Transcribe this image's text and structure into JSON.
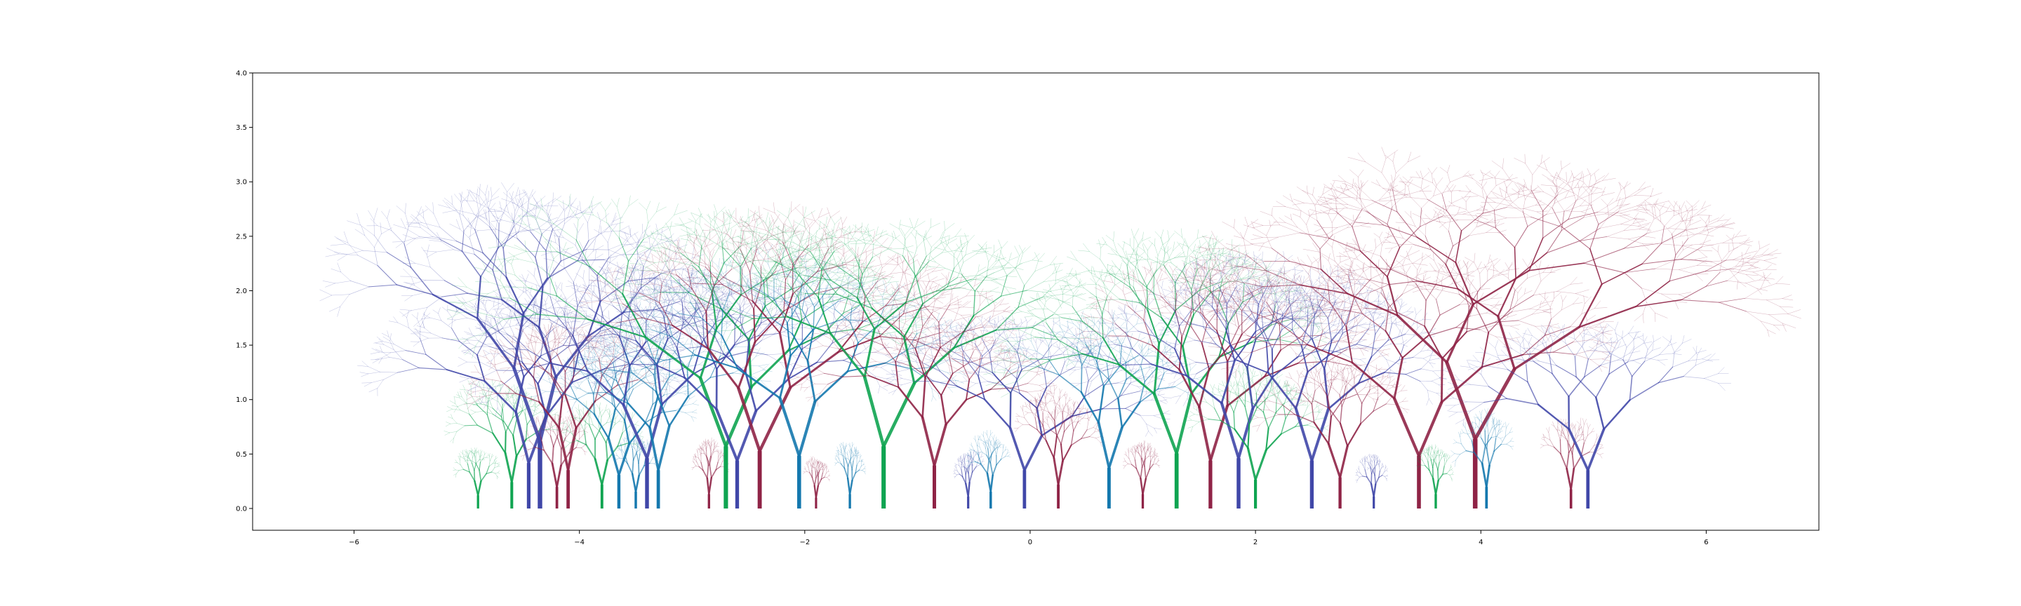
{
  "chart_data": {
    "type": "scatter",
    "title": "",
    "xlabel": "",
    "ylabel": "",
    "xlim": [
      -6.9,
      7.0
    ],
    "ylim": [
      -0.2,
      4.0
    ],
    "grid": false,
    "x_ticks": [
      -6,
      -4,
      -2,
      0,
      2,
      4,
      6
    ],
    "x_tick_labels": [
      "−6",
      "−4",
      "−2",
      "0",
      "2",
      "4",
      "6"
    ],
    "y_ticks": [
      0.0,
      0.5,
      1.0,
      1.5,
      2.0,
      2.5,
      3.0,
      3.5,
      4.0
    ],
    "y_tick_labels": [
      "0.0",
      "0.5",
      "1.0",
      "1.5",
      "2.0",
      "2.5",
      "3.0",
      "3.5",
      "4.0"
    ],
    "palette": [
      "#4047a8",
      "#8f2346",
      "#0fa451",
      "#1478ae"
    ],
    "trees": [
      {
        "x": -4.9,
        "h": 0.55,
        "spread": 0.7,
        "color": 2,
        "depth": 6
      },
      {
        "x": -4.6,
        "h": 1.1,
        "spread": 0.9,
        "color": 2,
        "depth": 7
      },
      {
        "x": -4.45,
        "h": 1.9,
        "spread": 1.3,
        "color": 0,
        "depth": 8
      },
      {
        "x": -4.35,
        "h": 2.8,
        "spread": 1.2,
        "color": 0,
        "depth": 8
      },
      {
        "x": -4.2,
        "h": 0.9,
        "spread": 0.6,
        "color": 1,
        "depth": 6
      },
      {
        "x": -4.1,
        "h": 1.6,
        "spread": 1.0,
        "color": 1,
        "depth": 7
      },
      {
        "x": -3.8,
        "h": 1.0,
        "spread": 0.7,
        "color": 2,
        "depth": 6
      },
      {
        "x": -3.65,
        "h": 1.4,
        "spread": 1.0,
        "color": 3,
        "depth": 7
      },
      {
        "x": -3.5,
        "h": 0.7,
        "spread": 0.5,
        "color": 3,
        "depth": 6
      },
      {
        "x": -3.4,
        "h": 2.1,
        "spread": 1.1,
        "color": 0,
        "depth": 8
      },
      {
        "x": -3.3,
        "h": 1.6,
        "spread": 1.0,
        "color": 3,
        "depth": 7
      },
      {
        "x": -2.85,
        "h": 0.6,
        "spread": 0.5,
        "color": 1,
        "depth": 6
      },
      {
        "x": -2.7,
        "h": 2.6,
        "spread": 1.3,
        "color": 2,
        "depth": 8
      },
      {
        "x": -2.6,
        "h": 2.0,
        "spread": 1.1,
        "color": 0,
        "depth": 8
      },
      {
        "x": -2.4,
        "h": 2.4,
        "spread": 1.2,
        "color": 1,
        "depth": 8
      },
      {
        "x": -2.05,
        "h": 2.2,
        "spread": 1.2,
        "color": 3,
        "depth": 8
      },
      {
        "x": -1.9,
        "h": 0.45,
        "spread": 0.5,
        "color": 1,
        "depth": 6
      },
      {
        "x": -1.6,
        "h": 0.6,
        "spread": 0.5,
        "color": 3,
        "depth": 6
      },
      {
        "x": -1.3,
        "h": 2.6,
        "spread": 1.3,
        "color": 2,
        "depth": 8
      },
      {
        "x": -0.85,
        "h": 1.8,
        "spread": 1.2,
        "color": 1,
        "depth": 8
      },
      {
        "x": -0.55,
        "h": 0.5,
        "spread": 0.5,
        "color": 0,
        "depth": 6
      },
      {
        "x": -0.35,
        "h": 0.7,
        "spread": 0.6,
        "color": 3,
        "depth": 6
      },
      {
        "x": -0.05,
        "h": 1.6,
        "spread": 1.3,
        "color": 0,
        "depth": 8
      },
      {
        "x": 0.25,
        "h": 1.0,
        "spread": 0.7,
        "color": 1,
        "depth": 7
      },
      {
        "x": 0.7,
        "h": 1.7,
        "spread": 1.0,
        "color": 3,
        "depth": 7
      },
      {
        "x": 1.0,
        "h": 0.6,
        "spread": 0.5,
        "color": 1,
        "depth": 6
      },
      {
        "x": 1.3,
        "h": 2.3,
        "spread": 1.1,
        "color": 2,
        "depth": 8
      },
      {
        "x": 1.6,
        "h": 2.0,
        "spread": 1.1,
        "color": 1,
        "depth": 8
      },
      {
        "x": 1.85,
        "h": 2.1,
        "spread": 1.1,
        "color": 0,
        "depth": 8
      },
      {
        "x": 2.0,
        "h": 1.2,
        "spread": 0.9,
        "color": 2,
        "depth": 7
      },
      {
        "x": 2.5,
        "h": 2.0,
        "spread": 1.0,
        "color": 0,
        "depth": 8
      },
      {
        "x": 2.75,
        "h": 1.3,
        "spread": 1.0,
        "color": 1,
        "depth": 7
      },
      {
        "x": 3.05,
        "h": 0.5,
        "spread": 0.5,
        "color": 0,
        "depth": 6
      },
      {
        "x": 3.45,
        "h": 2.2,
        "spread": 1.4,
        "color": 1,
        "depth": 8
      },
      {
        "x": 3.6,
        "h": 0.6,
        "spread": 0.5,
        "color": 2,
        "depth": 6
      },
      {
        "x": 3.95,
        "h": 2.9,
        "spread": 1.5,
        "color": 1,
        "depth": 9
      },
      {
        "x": 4.05,
        "h": 0.9,
        "spread": 0.6,
        "color": 3,
        "depth": 6
      },
      {
        "x": 4.8,
        "h": 0.8,
        "spread": 0.6,
        "color": 1,
        "depth": 6
      },
      {
        "x": 4.95,
        "h": 1.6,
        "spread": 1.3,
        "color": 0,
        "depth": 7
      }
    ]
  }
}
